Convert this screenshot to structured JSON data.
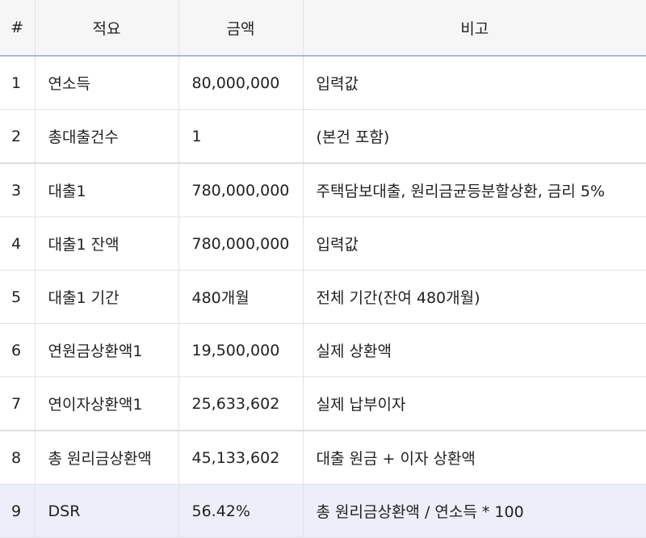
{
  "table": {
    "headers": [
      "#",
      "적요",
      "금액",
      "비고"
    ],
    "rows": [
      {
        "num": "1",
        "title": "연소득",
        "amount": "80,000,000",
        "note": "입력값"
      },
      {
        "num": "2",
        "title": "총대출건수",
        "amount": "1",
        "note": "(본건 포함)"
      },
      {
        "num": "3",
        "title": "대출1",
        "amount": "780,000,000",
        "note": "주택담보대출, 원리금균등분할상환, 금리 5%"
      },
      {
        "num": "4",
        "title": "대출1 잔액",
        "amount": "780,000,000",
        "note": "입력값"
      },
      {
        "num": "5",
        "title": "대출1 기간",
        "amount": "480개월",
        "note": "전체 기간(잔여 480개월)"
      },
      {
        "num": "6",
        "title": "연원금상환액1",
        "amount": "19,500,000",
        "note": "실제 상환액"
      },
      {
        "num": "7",
        "title": "연이자상환액1",
        "amount": "25,633,602",
        "note": "실제 납부이자"
      },
      {
        "num": "8",
        "title": "총 원리금상환액",
        "amount": "45,133,602",
        "note": "대출 원금 + 이자 상환액"
      },
      {
        "num": "9",
        "title": "DSR",
        "amount": "56.42%",
        "note": "총 원리금상환액 / 연소득 * 100"
      }
    ]
  }
}
